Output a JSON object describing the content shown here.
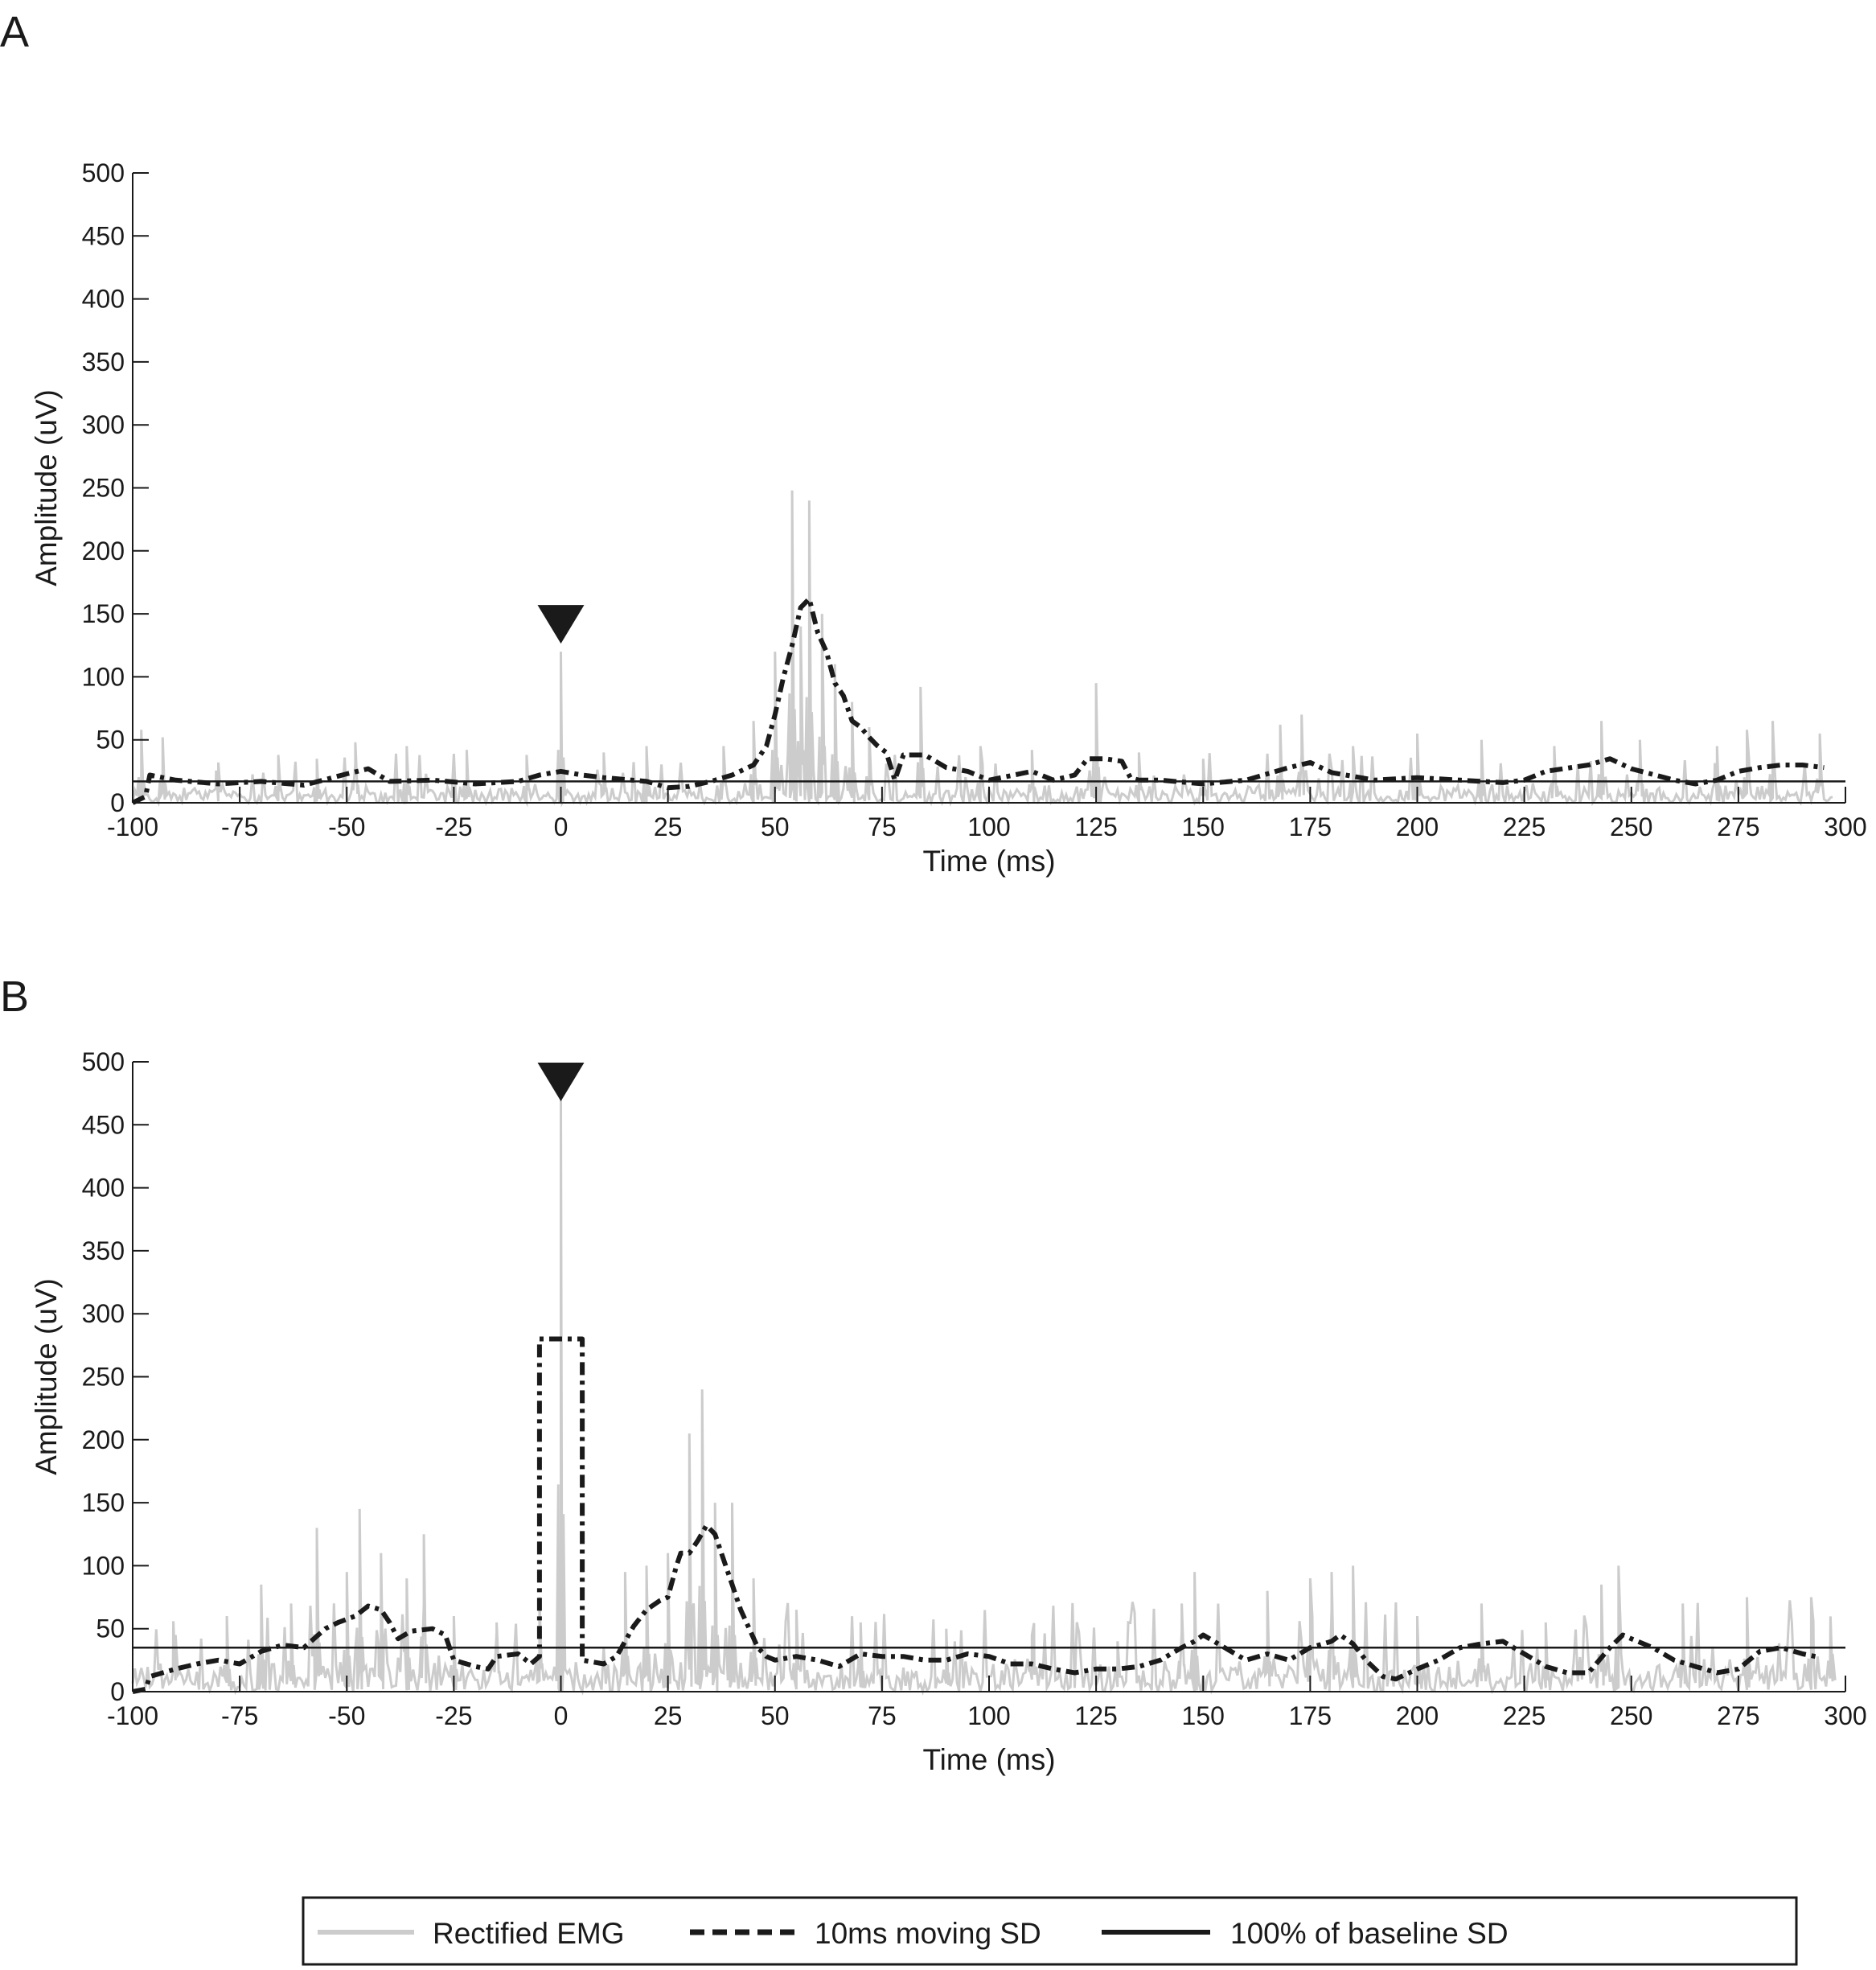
{
  "chart_data": [
    {
      "panel_label": "A",
      "type": "line",
      "xlabel": "Time (ms)",
      "ylabel": "Amplitude (uV)",
      "xlim": [
        -100,
        300
      ],
      "ylim": [
        0,
        500
      ],
      "xticks": [
        -100,
        -75,
        -50,
        -25,
        0,
        25,
        50,
        75,
        100,
        125,
        150,
        175,
        200,
        225,
        250,
        275,
        300
      ],
      "yticks": [
        0,
        50,
        100,
        150,
        200,
        250,
        300,
        350,
        400,
        450,
        500
      ],
      "stimulus_marker_x": 0,
      "stimulus_artifact_peak": 120,
      "rectified_emg_peaks": [
        {
          "x": -98,
          "y": 58
        },
        {
          "x": -93,
          "y": 52
        },
        {
          "x": -80,
          "y": 32
        },
        {
          "x": -66,
          "y": 38
        },
        {
          "x": -57,
          "y": 35
        },
        {
          "x": -48,
          "y": 48
        },
        {
          "x": -36,
          "y": 45
        },
        {
          "x": -22,
          "y": 42
        },
        {
          "x": -8,
          "y": 38
        },
        {
          "x": 0,
          "y": 120
        },
        {
          "x": 10,
          "y": 40
        },
        {
          "x": 20,
          "y": 45
        },
        {
          "x": 38,
          "y": 45
        },
        {
          "x": 45,
          "y": 65
        },
        {
          "x": 50,
          "y": 120
        },
        {
          "x": 54,
          "y": 248
        },
        {
          "x": 56,
          "y": 140
        },
        {
          "x": 58,
          "y": 240
        },
        {
          "x": 61,
          "y": 150
        },
        {
          "x": 64,
          "y": 110
        },
        {
          "x": 68,
          "y": 80
        },
        {
          "x": 72,
          "y": 60
        },
        {
          "x": 84,
          "y": 92
        },
        {
          "x": 98,
          "y": 45
        },
        {
          "x": 110,
          "y": 42
        },
        {
          "x": 125,
          "y": 95
        },
        {
          "x": 135,
          "y": 40
        },
        {
          "x": 150,
          "y": 35
        },
        {
          "x": 168,
          "y": 62
        },
        {
          "x": 173,
          "y": 70
        },
        {
          "x": 185,
          "y": 45
        },
        {
          "x": 200,
          "y": 55
        },
        {
          "x": 215,
          "y": 50
        },
        {
          "x": 232,
          "y": 45
        },
        {
          "x": 243,
          "y": 65
        },
        {
          "x": 252,
          "y": 50
        },
        {
          "x": 270,
          "y": 45
        },
        {
          "x": 277,
          "y": 58
        },
        {
          "x": 283,
          "y": 65
        },
        {
          "x": 294,
          "y": 55
        }
      ],
      "series": [
        {
          "name": "10ms moving SD",
          "x": [
            -100,
            -97,
            -96,
            -90,
            -80,
            -70,
            -60,
            -50,
            -45,
            -40,
            -30,
            -20,
            -10,
            -5,
            0,
            5,
            10,
            20,
            25,
            30,
            35,
            40,
            45,
            48,
            50,
            52,
            54,
            56,
            58,
            60,
            62,
            64,
            66,
            68,
            70,
            72,
            74,
            76,
            78,
            80,
            85,
            90,
            95,
            100,
            110,
            115,
            120,
            123,
            127,
            131,
            133,
            135,
            140,
            150,
            160,
            170,
            175,
            180,
            190,
            200,
            210,
            220,
            225,
            230,
            240,
            245,
            250,
            260,
            265,
            270,
            275,
            280,
            285,
            290,
            295
          ],
          "y": [
            0,
            5,
            22,
            18,
            15,
            17,
            14,
            23,
            27,
            17,
            18,
            15,
            17,
            22,
            25,
            22,
            20,
            17,
            12,
            13,
            17,
            22,
            30,
            45,
            70,
            100,
            125,
            155,
            162,
            135,
            120,
            95,
            85,
            65,
            60,
            52,
            45,
            40,
            18,
            38,
            38,
            28,
            25,
            18,
            25,
            18,
            22,
            35,
            35,
            33,
            20,
            18,
            18,
            15,
            18,
            28,
            32,
            24,
            18,
            20,
            18,
            16,
            18,
            25,
            30,
            35,
            27,
            18,
            15,
            18,
            25,
            28,
            30,
            30,
            28
          ]
        },
        {
          "name": "100% of baseline SD",
          "x": [
            -100,
            300
          ],
          "y": [
            17,
            17
          ]
        }
      ]
    },
    {
      "panel_label": "B",
      "type": "line",
      "xlabel": "Time (ms)",
      "ylabel": "Amplitude (uV)",
      "xlim": [
        -100,
        300
      ],
      "ylim": [
        0,
        500
      ],
      "xticks": [
        -100,
        -75,
        -50,
        -25,
        0,
        25,
        50,
        75,
        100,
        125,
        150,
        175,
        200,
        225,
        250,
        275,
        300
      ],
      "yticks": [
        0,
        50,
        100,
        150,
        200,
        250,
        300,
        350,
        400,
        450,
        500
      ],
      "stimulus_marker_x": 0,
      "stimulus_artifact_peak": 470,
      "rectified_emg_peaks": [
        {
          "x": -90,
          "y": 45
        },
        {
          "x": -78,
          "y": 60
        },
        {
          "x": -70,
          "y": 85
        },
        {
          "x": -63,
          "y": 70
        },
        {
          "x": -57,
          "y": 130
        },
        {
          "x": -50,
          "y": 95
        },
        {
          "x": -47,
          "y": 145
        },
        {
          "x": -42,
          "y": 110
        },
        {
          "x": -36,
          "y": 90
        },
        {
          "x": -32,
          "y": 125
        },
        {
          "x": -25,
          "y": 60
        },
        {
          "x": -15,
          "y": 55
        },
        {
          "x": -5,
          "y": 75
        },
        {
          "x": 0,
          "y": 470
        },
        {
          "x": 15,
          "y": 95
        },
        {
          "x": 20,
          "y": 100
        },
        {
          "x": 25,
          "y": 110
        },
        {
          "x": 30,
          "y": 205
        },
        {
          "x": 33,
          "y": 240
        },
        {
          "x": 36,
          "y": 150
        },
        {
          "x": 40,
          "y": 150
        },
        {
          "x": 45,
          "y": 90
        },
        {
          "x": 55,
          "y": 65
        },
        {
          "x": 70,
          "y": 55
        },
        {
          "x": 90,
          "y": 50
        },
        {
          "x": 110,
          "y": 45
        },
        {
          "x": 130,
          "y": 40
        },
        {
          "x": 145,
          "y": 70
        },
        {
          "x": 148,
          "y": 95
        },
        {
          "x": 165,
          "y": 80
        },
        {
          "x": 175,
          "y": 90
        },
        {
          "x": 180,
          "y": 95
        },
        {
          "x": 185,
          "y": 100
        },
        {
          "x": 200,
          "y": 60
        },
        {
          "x": 215,
          "y": 70
        },
        {
          "x": 230,
          "y": 55
        },
        {
          "x": 243,
          "y": 85
        },
        {
          "x": 247,
          "y": 100
        },
        {
          "x": 262,
          "y": 70
        },
        {
          "x": 277,
          "y": 75
        },
        {
          "x": 292,
          "y": 75
        },
        {
          "x": 297,
          "y": 30
        }
      ],
      "series": [
        {
          "name": "10ms moving SD",
          "x": [
            -100,
            -97,
            -96,
            -93,
            -90,
            -85,
            -80,
            -75,
            -70,
            -65,
            -60,
            -55,
            -52,
            -48,
            -45,
            -42,
            -40,
            -38,
            -35,
            -30,
            -27,
            -25,
            -20,
            -17,
            -15,
            -10,
            -7,
            -5,
            -5,
            5,
            5,
            10,
            13,
            15,
            17,
            20,
            23,
            25,
            27,
            28,
            30,
            32,
            34,
            36,
            38,
            40,
            42,
            44,
            46,
            48,
            50,
            55,
            60,
            65,
            70,
            75,
            80,
            85,
            90,
            95,
            100,
            105,
            110,
            115,
            120,
            125,
            130,
            135,
            140,
            145,
            148,
            150,
            155,
            160,
            165,
            170,
            175,
            180,
            182,
            185,
            188,
            192,
            195,
            200,
            205,
            210,
            215,
            220,
            225,
            230,
            235,
            240,
            245,
            248,
            250,
            255,
            260,
            265,
            270,
            275,
            280,
            285,
            290,
            293
          ],
          "y": [
            0,
            2,
            12,
            15,
            18,
            22,
            25,
            22,
            32,
            37,
            35,
            50,
            55,
            60,
            68,
            65,
            55,
            42,
            48,
            50,
            45,
            25,
            20,
            18,
            28,
            30,
            22,
            28,
            280,
            280,
            25,
            22,
            28,
            40,
            52,
            65,
            72,
            75,
            100,
            110,
            110,
            120,
            132,
            125,
            105,
            85,
            65,
            50,
            35,
            28,
            25,
            28,
            25,
            20,
            30,
            28,
            28,
            25,
            25,
            30,
            28,
            22,
            22,
            18,
            15,
            18,
            18,
            20,
            25,
            35,
            40,
            45,
            35,
            25,
            30,
            25,
            35,
            40,
            45,
            38,
            25,
            12,
            10,
            18,
            25,
            35,
            38,
            40,
            30,
            20,
            15,
            15,
            35,
            45,
            42,
            35,
            25,
            20,
            15,
            18,
            32,
            35,
            30,
            28
          ]
        },
        {
          "name": "100% of baseline SD",
          "x": [
            -100,
            300
          ],
          "y": [
            35,
            35
          ]
        }
      ]
    }
  ],
  "legend": {
    "placement": "bottom-center",
    "entries": [
      {
        "label": "Rectified EMG",
        "style": "solid",
        "color": "#cccccc"
      },
      {
        "label": "10ms moving SD",
        "style": "dash-dot",
        "color": "#1a1a1a"
      },
      {
        "label": "100% of baseline SD",
        "style": "solid",
        "color": "#1a1a1a"
      }
    ]
  },
  "colors": {
    "emg": "#cccccc",
    "moving_sd": "#1a1a1a",
    "baseline": "#1a1a1a",
    "axis": "#1a1a1a"
  }
}
